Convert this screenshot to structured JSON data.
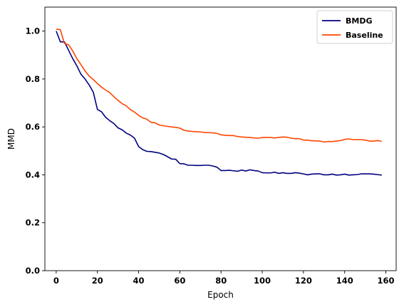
{
  "chart_data": {
    "type": "line",
    "xlabel": "Epoch",
    "ylabel": "MMD",
    "xlim": [
      -5.5,
      165
    ],
    "ylim": [
      0.0,
      1.1
    ],
    "xticks": [
      0,
      20,
      40,
      60,
      80,
      100,
      120,
      140,
      160
    ],
    "xtick_labels": [
      "0",
      "20",
      "40",
      "60",
      "80",
      "100",
      "120",
      "140",
      "160"
    ],
    "yticks": [
      0.0,
      0.2,
      0.4,
      0.6,
      0.8,
      1.0
    ],
    "ytick_labels": [
      "0.0",
      "0.2",
      "0.4",
      "0.6",
      "0.8",
      "1.0"
    ],
    "grid": false,
    "legend": "top-right",
    "series": [
      {
        "name": "BMDG",
        "color": "#00007f",
        "x": [
          0,
          2,
          4,
          6,
          8,
          10,
          12,
          14,
          16,
          18,
          20,
          22,
          24,
          26,
          28,
          30,
          32,
          34,
          36,
          38,
          40,
          42,
          44,
          46,
          48,
          50,
          52,
          54,
          56,
          58,
          60,
          62,
          64,
          66,
          68,
          70,
          72,
          74,
          76,
          78,
          80,
          82,
          84,
          86,
          88,
          90,
          92,
          94,
          96,
          98,
          100,
          102,
          104,
          106,
          108,
          110,
          112,
          114,
          116,
          118,
          120,
          122,
          124,
          126,
          128,
          130,
          132,
          134,
          136,
          138,
          140,
          142,
          144,
          146,
          148,
          150,
          152,
          154,
          156,
          158
        ],
        "values": [
          1.0,
          0.955,
          0.955,
          0.92,
          0.885,
          0.855,
          0.82,
          0.8,
          0.775,
          0.745,
          0.673,
          0.663,
          0.64,
          0.626,
          0.614,
          0.596,
          0.588,
          0.574,
          0.566,
          0.553,
          0.518,
          0.505,
          0.498,
          0.497,
          0.494,
          0.491,
          0.485,
          0.476,
          0.466,
          0.465,
          0.447,
          0.446,
          0.44,
          0.44,
          0.439,
          0.439,
          0.44,
          0.44,
          0.437,
          0.432,
          0.418,
          0.418,
          0.419,
          0.417,
          0.415,
          0.42,
          0.416,
          0.421,
          0.418,
          0.416,
          0.409,
          0.408,
          0.408,
          0.411,
          0.406,
          0.409,
          0.406,
          0.406,
          0.409,
          0.407,
          0.404,
          0.4,
          0.403,
          0.404,
          0.404,
          0.4,
          0.4,
          0.403,
          0.399,
          0.4,
          0.403,
          0.399,
          0.4,
          0.401,
          0.404,
          0.404,
          0.404,
          0.403,
          0.401,
          0.399
        ]
      },
      {
        "name": "Baseline",
        "color": "#ff4500",
        "x": [
          0,
          2,
          4,
          6,
          8,
          10,
          12,
          14,
          16,
          18,
          20,
          22,
          24,
          26,
          28,
          30,
          32,
          34,
          36,
          38,
          40,
          42,
          44,
          46,
          48,
          50,
          52,
          54,
          56,
          58,
          60,
          62,
          64,
          66,
          68,
          70,
          72,
          74,
          76,
          78,
          80,
          82,
          84,
          86,
          88,
          90,
          92,
          94,
          96,
          98,
          100,
          102,
          104,
          106,
          108,
          110,
          112,
          114,
          116,
          118,
          120,
          122,
          124,
          126,
          128,
          130,
          132,
          134,
          136,
          138,
          140,
          142,
          144,
          146,
          148,
          150,
          152,
          154,
          156,
          158
        ],
        "values": [
          1.008,
          1.006,
          0.948,
          0.943,
          0.917,
          0.885,
          0.86,
          0.834,
          0.812,
          0.798,
          0.781,
          0.766,
          0.754,
          0.743,
          0.726,
          0.711,
          0.697,
          0.688,
          0.672,
          0.662,
          0.648,
          0.638,
          0.632,
          0.619,
          0.617,
          0.608,
          0.605,
          0.602,
          0.6,
          0.598,
          0.595,
          0.586,
          0.583,
          0.581,
          0.58,
          0.579,
          0.577,
          0.576,
          0.575,
          0.573,
          0.567,
          0.565,
          0.564,
          0.564,
          0.56,
          0.558,
          0.557,
          0.556,
          0.554,
          0.553,
          0.556,
          0.556,
          0.556,
          0.554,
          0.556,
          0.558,
          0.557,
          0.553,
          0.551,
          0.551,
          0.545,
          0.545,
          0.542,
          0.542,
          0.541,
          0.537,
          0.539,
          0.539,
          0.541,
          0.543,
          0.548,
          0.55,
          0.547,
          0.547,
          0.547,
          0.545,
          0.541,
          0.541,
          0.543,
          0.54
        ]
      }
    ]
  }
}
